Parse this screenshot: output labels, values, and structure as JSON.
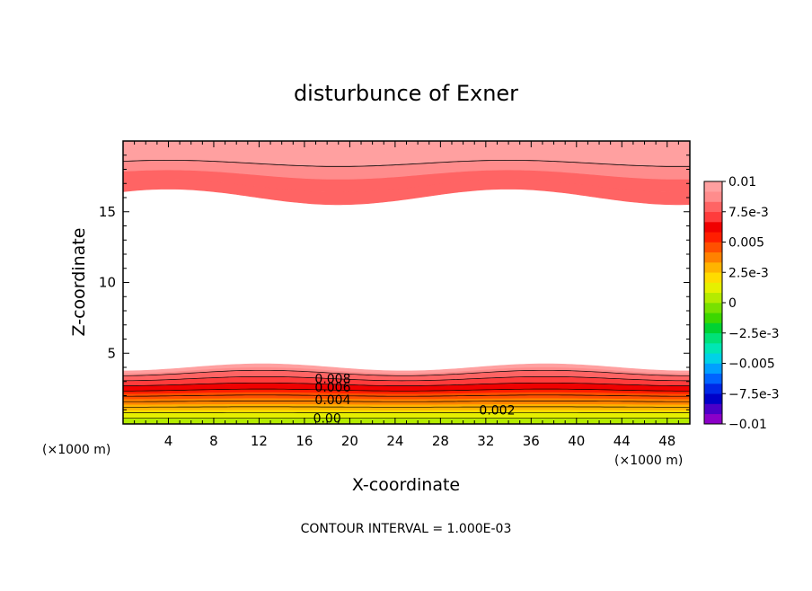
{
  "chart_data": {
    "type": "heatmap",
    "title": "disturbunce of Exner",
    "xlabel": "X-coordinate",
    "ylabel": "Z-coordinate",
    "x_unit_note": "(×1000 m)",
    "y_unit_note": "(×1000 m)",
    "xlim": [
      0,
      50
    ],
    "ylim": [
      0,
      20
    ],
    "x_ticks": [
      4,
      8,
      12,
      16,
      20,
      24,
      28,
      32,
      36,
      40,
      44,
      48
    ],
    "y_ticks": [
      5,
      10,
      15
    ],
    "grid": false,
    "colorbar": {
      "placement": "right",
      "min": -0.01,
      "max": 0.01,
      "tick_values": [
        0.01,
        0.0075,
        0.005,
        0.0025,
        0,
        -0.0025,
        -0.005,
        -0.0075,
        -0.01
      ],
      "tick_labels": [
        "0.01",
        "7.5e-3",
        "0.005",
        "2.5e-3",
        "0",
        "-2.5e-3",
        "-0.005",
        "-7.5e-3",
        "-0.01"
      ],
      "colors": [
        "#8b00c8",
        "#4b00c8",
        "#0000c8",
        "#0028e6",
        "#0064ff",
        "#00a0ff",
        "#00d2e6",
        "#00e6b4",
        "#00e178",
        "#00d232",
        "#3cd700",
        "#78e100",
        "#b4eb00",
        "#e6f000",
        "#ffdc00",
        "#ffb400",
        "#ff8200",
        "#ff5000",
        "#ff1e00",
        "#f00000",
        "#ff3c3c",
        "#ff6464",
        "#ff8c8c",
        "#ffa0a0"
      ]
    },
    "contour_labels": [
      {
        "text": "0.008",
        "x": 18.5,
        "z": 3.2
      },
      {
        "text": "0.006",
        "x": 18.5,
        "z": 2.6
      },
      {
        "text": "0.004",
        "x": 18.5,
        "z": 1.7
      },
      {
        "text": "0.00",
        "x": 18.0,
        "z": 0.4
      },
      {
        "text": "0.002",
        "x": 33.0,
        "z": 1.0
      }
    ],
    "contour_interval": "CONTOUR INTERVAL = 1.000E-03",
    "field": {
      "lower_band": {
        "value_range": [
          0.0,
          0.0095
        ],
        "top_z": 4.0
      },
      "upper_band": {
        "value_range": [
          0.0075,
          0.01
        ],
        "bottom_z": 15.6
      }
    }
  }
}
